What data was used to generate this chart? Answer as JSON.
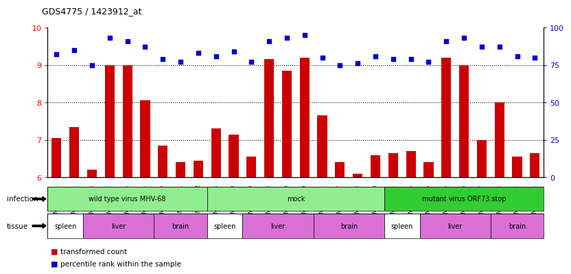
{
  "title": "GDS4775 / 1423912_at",
  "samples": [
    "GSM1243471",
    "GSM1243472",
    "GSM1243473",
    "GSM1243462",
    "GSM1243463",
    "GSM1243464",
    "GSM1243480",
    "GSM1243481",
    "GSM1243482",
    "GSM1243468",
    "GSM1243469",
    "GSM1243470",
    "GSM1243458",
    "GSM1243459",
    "GSM1243460",
    "GSM1243461",
    "GSM1243477",
    "GSM1243478",
    "GSM1243479",
    "GSM1243474",
    "GSM1243475",
    "GSM1243476",
    "GSM1243465",
    "GSM1243466",
    "GSM1243467",
    "GSM1243483",
    "GSM1243484",
    "GSM1243485"
  ],
  "bar_values": [
    7.05,
    7.35,
    6.2,
    9.0,
    9.0,
    8.05,
    6.85,
    6.4,
    6.45,
    7.3,
    7.15,
    6.55,
    9.15,
    8.85,
    9.2,
    7.65,
    6.4,
    6.1,
    6.6,
    6.65,
    6.7,
    6.4,
    9.2,
    9.0,
    7.0,
    8.0,
    6.55,
    6.65
  ],
  "percentile_values": [
    82,
    85,
    75,
    93,
    91,
    87,
    79,
    77,
    83,
    81,
    84,
    77,
    91,
    93,
    95,
    80,
    75,
    76,
    81,
    79,
    79,
    77,
    91,
    93,
    87,
    87,
    81,
    80
  ],
  "ylim_left": [
    6,
    10
  ],
  "ylim_right": [
    0,
    100
  ],
  "yticks_left": [
    6,
    7,
    8,
    9,
    10
  ],
  "yticks_right": [
    0,
    25,
    50,
    75,
    100
  ],
  "bar_color": "#cc0000",
  "dot_color": "#0000cc",
  "infection_data": [
    {
      "label": "wild type virus MHV-68",
      "start": 0,
      "end": 8,
      "color": "#90ee90"
    },
    {
      "label": "mock",
      "start": 9,
      "end": 18,
      "color": "#90ee90"
    },
    {
      "label": "mutant virus ORF73.stop",
      "start": 19,
      "end": 27,
      "color": "#32cd32"
    }
  ],
  "tissue_data": [
    {
      "label": "spleen",
      "start": 0,
      "end": 1,
      "color": "#ffffff"
    },
    {
      "label": "liver",
      "start": 2,
      "end": 5,
      "color": "#da70d6"
    },
    {
      "label": "brain",
      "start": 6,
      "end": 8,
      "color": "#da70d6"
    },
    {
      "label": "spleen",
      "start": 9,
      "end": 10,
      "color": "#ffffff"
    },
    {
      "label": "liver",
      "start": 11,
      "end": 14,
      "color": "#da70d6"
    },
    {
      "label": "brain",
      "start": 15,
      "end": 18,
      "color": "#da70d6"
    },
    {
      "label": "spleen",
      "start": 19,
      "end": 20,
      "color": "#ffffff"
    },
    {
      "label": "liver",
      "start": 21,
      "end": 24,
      "color": "#da70d6"
    },
    {
      "label": "brain",
      "start": 25,
      "end": 27,
      "color": "#da70d6"
    }
  ]
}
